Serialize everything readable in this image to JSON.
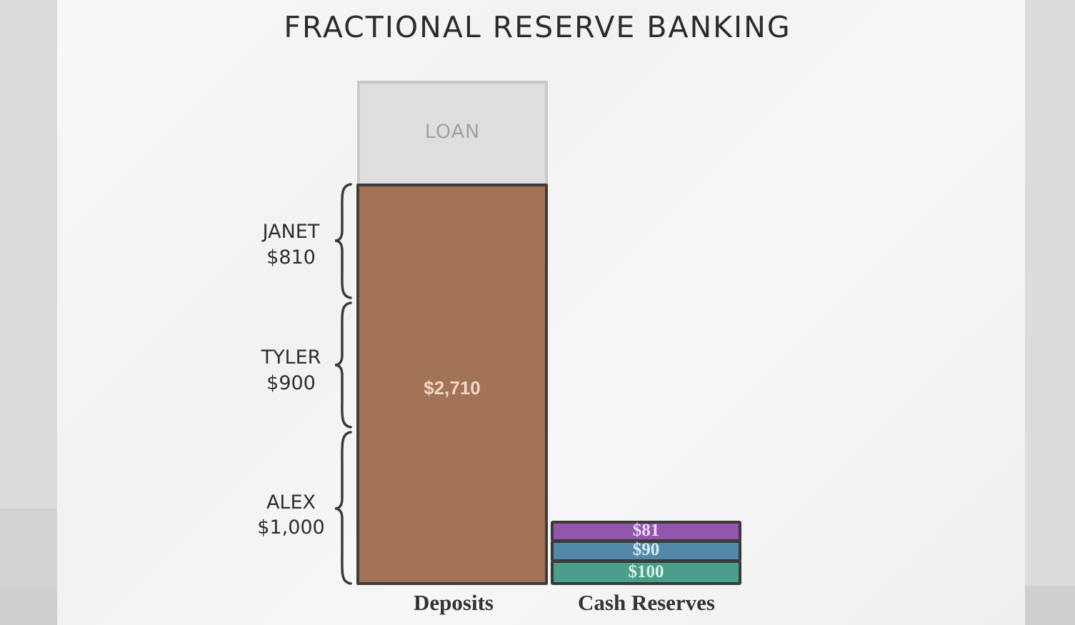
{
  "chart_data": {
    "type": "bar",
    "title": "FRACTIONAL RESERVE BANKING",
    "categories": [
      "Deposits",
      "Cash Reserves"
    ],
    "deposits": {
      "total_label": "$2,710",
      "segments": [
        {
          "name": "ALEX",
          "label": "$1,000",
          "value": 1000
        },
        {
          "name": "TYLER",
          "label": "$900",
          "value": 900
        },
        {
          "name": "JANET",
          "label": "$810",
          "value": 810
        }
      ],
      "loan_label": "LOAN"
    },
    "cash_reserves": {
      "segments": [
        {
          "label": "$100",
          "value": 100,
          "color": "#4a9f8a"
        },
        {
          "label": "$90",
          "value": 90,
          "color": "#5488a8"
        },
        {
          "label": "$81",
          "value": 81,
          "color": "#9455ad"
        }
      ]
    },
    "colors": {
      "deposits": "#a37356",
      "loan": "#dedede"
    }
  }
}
